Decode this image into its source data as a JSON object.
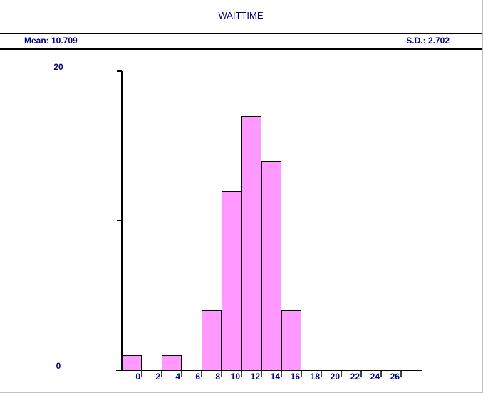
{
  "title": "WAITTIME",
  "stats": {
    "mean": "Mean: 10.709",
    "sd": "S.D.: 2.702"
  },
  "colors": {
    "bar_fill": "#ff99ff",
    "text": "#000080",
    "axis": "#000000"
  },
  "chart_data": {
    "type": "bar",
    "title": "WAITTIME",
    "bin_width": 2,
    "bins": [
      {
        "start": -2,
        "end": 0,
        "count": 1
      },
      {
        "start": 2,
        "end": 4,
        "count": 1
      },
      {
        "start": 6,
        "end": 8,
        "count": 4
      },
      {
        "start": 8,
        "end": 10,
        "count": 12
      },
      {
        "start": 10,
        "end": 12,
        "count": 17
      },
      {
        "start": 12,
        "end": 14,
        "count": 14
      },
      {
        "start": 14,
        "end": 16,
        "count": 4
      }
    ],
    "ylim": [
      0,
      20
    ],
    "y_tick_labels": [
      "0",
      "20"
    ],
    "x_tick_labels": [
      "0",
      "2",
      "4",
      "6",
      "8",
      "10",
      "12",
      "14",
      "16",
      "18",
      "20",
      "22",
      "24",
      "26"
    ],
    "grid": false,
    "legend": "none"
  }
}
